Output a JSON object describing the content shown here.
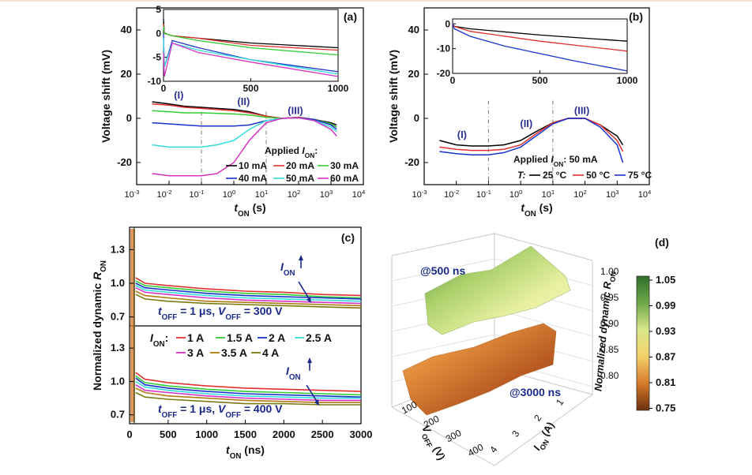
{
  "chart_data": [
    {
      "panel": "(a)",
      "type": "line",
      "xlabel_main": "t",
      "xlabel_sub": "ON",
      "xlabel_unit": " (s)",
      "ylabel": "Voltage shift (mV)",
      "xscale": "log",
      "xlim": [
        0.001,
        10000
      ],
      "ylim": [
        -30,
        50
      ],
      "xticks": [
        "10-3",
        "10-2",
        "10-1",
        "100",
        "101",
        "102",
        "103",
        "104"
      ],
      "yticks": [
        "-20",
        "0",
        "20",
        "40"
      ],
      "legend_title": "Applied I_ON:",
      "legend_title_main": "Applied ",
      "legend_title_i": "I",
      "legend_title_sub": "ON",
      "legend_title_end": ":",
      "region_labels": [
        "(I)",
        "(II)",
        "(III)"
      ],
      "series": [
        {
          "name": "10 mA",
          "color": "#000000",
          "x": [
            0.003,
            0.01,
            0.03,
            0.1,
            0.3,
            1,
            3,
            10,
            30,
            100,
            300,
            1000,
            1500
          ],
          "y": [
            7.5,
            6.5,
            5.5,
            5,
            4.5,
            4,
            3,
            1,
            0,
            0.5,
            -0.5,
            -2,
            -3
          ]
        },
        {
          "name": "20 mA",
          "color": "#e0312f",
          "x": [
            0.003,
            0.01,
            0.03,
            0.1,
            0.3,
            1,
            3,
            10,
            30,
            100,
            300,
            1000,
            1500
          ],
          "y": [
            6.5,
            6,
            5,
            4.5,
            4,
            3.5,
            2.5,
            1,
            0,
            0.5,
            -0.5,
            -2.5,
            -4
          ]
        },
        {
          "name": "30 mA",
          "color": "#33cc33",
          "x": [
            0.003,
            0.01,
            0.03,
            0.1,
            0.3,
            1,
            3,
            10,
            30,
            100,
            300,
            1000,
            1500
          ],
          "y": [
            3.5,
            3,
            2.5,
            2.5,
            2.3,
            2,
            1.5,
            0.5,
            0,
            0.3,
            -0.5,
            -2.5,
            -4
          ]
        },
        {
          "name": "40 mA",
          "color": "#1a33cc",
          "x": [
            0.003,
            0.01,
            0.03,
            0.1,
            0.3,
            1,
            3,
            10,
            30,
            100,
            300,
            1000,
            1500
          ],
          "y": [
            -2,
            -2.5,
            -3,
            -3.5,
            -3.5,
            -3.5,
            -3,
            -1,
            0,
            0.3,
            -0.5,
            -3,
            -5
          ]
        },
        {
          "name": "50 mA",
          "color": "#33dddd",
          "x": [
            0.003,
            0.01,
            0.03,
            0.1,
            0.3,
            1,
            3,
            10,
            30,
            100,
            300,
            1000,
            1500
          ],
          "y": [
            -12,
            -13,
            -13,
            -13,
            -12,
            -10,
            -5,
            -1,
            0,
            0.2,
            -1,
            -4,
            -6
          ]
        },
        {
          "name": "60 mA",
          "color": "#d633c4",
          "x": [
            0.003,
            0.01,
            0.03,
            0.1,
            0.3,
            1,
            3,
            10,
            30,
            100,
            300,
            1000,
            1500
          ],
          "y": [
            -25,
            -26,
            -26,
            -26,
            -25,
            -20,
            -10,
            -2,
            0,
            0.2,
            -1,
            -5,
            -8
          ]
        }
      ],
      "inset": {
        "xlim": [
          0,
          1000
        ],
        "ylim": [
          -10,
          5
        ],
        "xticks": [
          "0",
          "500",
          "1000"
        ],
        "yticks": [
          "-10",
          "-5",
          "0",
          "5"
        ],
        "series": [
          {
            "color": "#000000",
            "x": [
              0,
              5,
              50,
              200,
              500,
              1000
            ],
            "y": [
              3,
              0,
              -0.5,
              -1,
              -2,
              -3
            ]
          },
          {
            "color": "#e0312f",
            "x": [
              0,
              5,
              50,
              200,
              500,
              1000
            ],
            "y": [
              2,
              0,
              -0.5,
              -1,
              -2.5,
              -3.5
            ]
          },
          {
            "color": "#33cc33",
            "x": [
              0,
              5,
              50,
              200,
              500,
              1000
            ],
            "y": [
              1.5,
              0,
              -0.5,
              -1.5,
              -3,
              -4.5
            ]
          },
          {
            "color": "#1a33cc",
            "x": [
              0,
              5,
              50,
              200,
              500,
              1000
            ],
            "y": [
              0,
              -7,
              -1.5,
              -3,
              -5.5,
              -8
            ]
          },
          {
            "color": "#33dddd",
            "x": [
              0,
              5,
              50,
              200,
              500,
              1000
            ],
            "y": [
              -1,
              -7,
              -2,
              -3.5,
              -5.5,
              -8.5
            ]
          },
          {
            "color": "#d633c4",
            "x": [
              0,
              5,
              50,
              200,
              500,
              1000
            ],
            "y": [
              -4,
              -9,
              -2,
              -4,
              -6,
              -9
            ]
          }
        ]
      }
    },
    {
      "panel": "(b)",
      "type": "line",
      "xlabel_main": "t",
      "xlabel_sub": "ON",
      "xlabel_unit": " (s)",
      "ylabel": "Voltage shift (mV)",
      "xscale": "log",
      "xlim": [
        0.001,
        10000
      ],
      "ylim": [
        -30,
        50
      ],
      "xticks": [
        "10-3",
        "10-2",
        "10-1",
        "100",
        "101",
        "102",
        "103",
        "104"
      ],
      "yticks": [
        "-20",
        "0",
        "20",
        "40"
      ],
      "region_labels": [
        "(I)",
        "(II)",
        "(III)"
      ],
      "annotation_main": "Applied ",
      "annotation_i": "I",
      "annotation_sub": "ON",
      "annotation_end": ": 50 mA",
      "temp_label": "T:",
      "series": [
        {
          "name": "25 °C",
          "color": "#000000",
          "x": [
            0.003,
            0.01,
            0.03,
            0.1,
            0.3,
            1,
            3,
            10,
            30,
            100,
            300,
            1000,
            1500
          ],
          "y": [
            -10,
            -12,
            -12.5,
            -12.5,
            -12,
            -10,
            -6,
            -2,
            0,
            0,
            -3,
            -8,
            -12
          ]
        },
        {
          "name": "50 °C",
          "color": "#e0312f",
          "x": [
            0.003,
            0.01,
            0.03,
            0.1,
            0.3,
            1,
            3,
            10,
            30,
            100,
            300,
            1000,
            1500
          ],
          "y": [
            -13,
            -14,
            -14.5,
            -14.5,
            -14,
            -12,
            -7,
            -2,
            0,
            0,
            -3,
            -10,
            -15
          ]
        },
        {
          "name": "75 °C",
          "color": "#1a33cc",
          "x": [
            0.003,
            0.01,
            0.03,
            0.1,
            0.3,
            1,
            3,
            10,
            30,
            100,
            300,
            1000,
            1500
          ],
          "y": [
            -15,
            -16,
            -16.5,
            -16.5,
            -15.5,
            -13,
            -8,
            -2.5,
            0,
            0,
            -4,
            -12,
            -20
          ]
        }
      ],
      "inset": {
        "xlim": [
          0,
          1000
        ],
        "ylim": [
          -20,
          2
        ],
        "xticks": [
          "0",
          "500",
          "1000"
        ],
        "yticks": [
          "-20",
          "-10",
          "0"
        ],
        "series": [
          {
            "color": "#000000",
            "x": [
              0,
              10,
              100,
              500,
              1000
            ],
            "y": [
              0,
              -1,
              -2,
              -4.5,
              -7
            ]
          },
          {
            "color": "#e0312f",
            "x": [
              0,
              10,
              100,
              500,
              1000
            ],
            "y": [
              0,
              -1,
              -3,
              -7,
              -11
            ]
          },
          {
            "color": "#1a33cc",
            "x": [
              0,
              10,
              100,
              300,
              500,
              700,
              1000
            ],
            "y": [
              0,
              -2,
              -5,
              -9,
              -12,
              -15,
              -19
            ]
          }
        ]
      }
    },
    {
      "panel": "(c)",
      "type": "line",
      "ylabel_main": "Normalized dynamic ",
      "ylabel_r": "R",
      "ylabel_sub": "ON",
      "xlabel_main": "t",
      "xlabel_sub": "ON",
      "xlabel_unit": " (ns)",
      "xlim": [
        0,
        3000
      ],
      "xticks": [
        "0",
        "500",
        "1000",
        "1500",
        "2000",
        "2500",
        "3000"
      ],
      "yticks": [
        "0.7",
        "1.0",
        "1.3"
      ],
      "legend_i": "I",
      "legend_sub": "ON",
      "legend_colon": ":",
      "series_names": [
        "1 A",
        "1.5 A",
        "2 A",
        "2.5 A",
        "3 A",
        "3.5 A",
        "4 A"
      ],
      "series_colors": [
        "#e0312f",
        "#33cc33",
        "#1a33cc",
        "#33dddd",
        "#d633c4",
        "#b07a10",
        "#7a7a10"
      ],
      "top": {
        "ylim": [
          0.62,
          1.5
        ],
        "condition": {
          "t": "t",
          "t_sub": "OFF",
          "t_val": " = 1 μs, ",
          "v": "V",
          "v_sub": "OFF",
          "v_val": " = 300 V"
        },
        "arrow_label_i": "I",
        "arrow_label_sub": "ON",
        "series": [
          {
            "name": "1 A",
            "x": [
              80,
              200,
              500,
              1000,
              1500,
              2000,
              2500,
              3000
            ],
            "y": [
              1.05,
              1.0,
              0.98,
              0.95,
              0.93,
              0.92,
              0.9,
              0.89
            ]
          },
          {
            "name": "1.5 A",
            "x": [
              80,
              200,
              500,
              1000,
              1500,
              2000,
              2500,
              3000
            ],
            "y": [
              1.02,
              0.98,
              0.96,
              0.93,
              0.91,
              0.9,
              0.88,
              0.87
            ]
          },
          {
            "name": "2 A",
            "x": [
              80,
              200,
              500,
              1000,
              1500,
              2000,
              2500,
              3000
            ],
            "y": [
              1.0,
              0.96,
              0.94,
              0.91,
              0.89,
              0.88,
              0.87,
              0.86
            ]
          },
          {
            "name": "2.5 A",
            "x": [
              80,
              200,
              500,
              1000,
              1500,
              2000,
              2500,
              3000
            ],
            "y": [
              0.98,
              0.94,
              0.92,
              0.89,
              0.87,
              0.86,
              0.85,
              0.84
            ]
          },
          {
            "name": "3 A",
            "x": [
              80,
              200,
              500,
              1000,
              1500,
              2000,
              2500,
              3000
            ],
            "y": [
              0.96,
              0.92,
              0.9,
              0.87,
              0.85,
              0.84,
              0.83,
              0.82
            ]
          },
          {
            "name": "3.5 A",
            "x": [
              80,
              200,
              500,
              1000,
              1500,
              2000,
              2500,
              3000
            ],
            "y": [
              0.93,
              0.89,
              0.87,
              0.84,
              0.83,
              0.82,
              0.81,
              0.8
            ]
          },
          {
            "name": "4 A",
            "x": [
              80,
              200,
              500,
              1000,
              1500,
              2000,
              2500,
              3000
            ],
            "y": [
              0.9,
              0.86,
              0.84,
              0.82,
              0.81,
              0.8,
              0.79,
              0.78
            ]
          }
        ]
      },
      "bottom": {
        "ylim": [
          0.62,
          1.5
        ],
        "condition": {
          "t": "t",
          "t_sub": "OFF",
          "t_val": " = 1 μs, ",
          "v": "V",
          "v_sub": "OFF",
          "v_val": " = 400 V"
        },
        "arrow_label_i": "I",
        "arrow_label_sub": "ON",
        "series": [
          {
            "name": "1 A",
            "x": [
              80,
              200,
              500,
              1000,
              1500,
              2000,
              2500,
              3000
            ],
            "y": [
              1.08,
              1.02,
              0.99,
              0.96,
              0.94,
              0.93,
              0.92,
              0.91
            ]
          },
          {
            "name": "1.5 A",
            "x": [
              80,
              200,
              500,
              1000,
              1500,
              2000,
              2500,
              3000
            ],
            "y": [
              1.05,
              0.99,
              0.96,
              0.93,
              0.91,
              0.9,
              0.89,
              0.88
            ]
          },
          {
            "name": "2 A",
            "x": [
              80,
              200,
              500,
              1000,
              1500,
              2000,
              2500,
              3000
            ],
            "y": [
              1.03,
              0.97,
              0.94,
              0.91,
              0.89,
              0.88,
              0.87,
              0.86
            ]
          },
          {
            "name": "2.5 A",
            "x": [
              80,
              200,
              500,
              1000,
              1500,
              2000,
              2500,
              3000
            ],
            "y": [
              1.0,
              0.95,
              0.92,
              0.89,
              0.87,
              0.86,
              0.85,
              0.85
            ]
          },
          {
            "name": "3 A",
            "x": [
              80,
              200,
              500,
              1000,
              1500,
              2000,
              2500,
              3000
            ],
            "y": [
              0.97,
              0.92,
              0.9,
              0.87,
              0.85,
              0.84,
              0.83,
              0.83
            ]
          },
          {
            "name": "3.5 A",
            "x": [
              80,
              200,
              500,
              1000,
              1500,
              2000,
              2500,
              3000
            ],
            "y": [
              0.94,
              0.9,
              0.87,
              0.85,
              0.83,
              0.82,
              0.81,
              0.81
            ]
          },
          {
            "name": "4 A",
            "x": [
              80,
              200,
              500,
              1000,
              1500,
              2000,
              2500,
              3000
            ],
            "y": [
              0.9,
              0.86,
              0.84,
              0.82,
              0.8,
              0.8,
              0.79,
              0.79
            ]
          }
        ]
      }
    },
    {
      "panel": "(d)",
      "type": "heatmap",
      "label_500": "@500 ns",
      "label_3000": "@3000 ns",
      "zlabel_main": "Normalized dynamic ",
      "zlabel_r": "R",
      "zlabel_sub": "ON",
      "zticks": [
        "0.80",
        "0.85",
        "0.90",
        "0.95",
        "1.00"
      ],
      "xaxis_main": "V",
      "xaxis_sub": "OFF",
      "xaxis_unit": " (V)",
      "xticks": [
        "100",
        "200",
        "300",
        "400"
      ],
      "yaxis_main": "I",
      "yaxis_sub": "ON",
      "yaxis_unit": " (A)",
      "yticks": [
        "1",
        "2",
        "3",
        "4"
      ],
      "colorbar_ticks": [
        "1.05",
        "0.99",
        "0.93",
        "0.87",
        "0.81",
        "0.75"
      ],
      "colorbar_colors": [
        "#2e6e2a",
        "#6fa84a",
        "#d9e88a",
        "#f4d06a",
        "#d67a2a",
        "#6b3010"
      ],
      "surface_500_colors": [
        "#4f8f3a",
        "#a9cf6a",
        "#e8f0a0",
        "#f6f3c4"
      ],
      "surface_3000_colors": [
        "#f3b45a",
        "#e08a3a",
        "#b85a22",
        "#8a3e16"
      ]
    }
  ]
}
